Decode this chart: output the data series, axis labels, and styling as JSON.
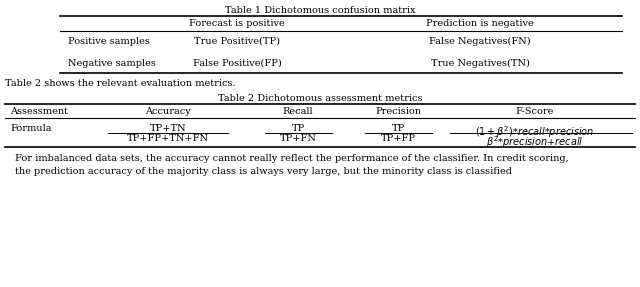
{
  "title1": "Table 1 Dichotomous confusion matrix",
  "title2": "Table 2 Dichotomous assessment metrics",
  "between_text": "Table 2 shows the relevant evaluation metrics.",
  "bottom_text": "For imbalanced data sets, the accuracy cannot really reflect the performance of the classifier. In credit scoring,",
  "bottom_text2": "the prediction accuracy of the majority class is always very large, but the minority class is classified",
  "bg_color": "#ffffff",
  "text_color": "#000000",
  "font_size": 7.0
}
